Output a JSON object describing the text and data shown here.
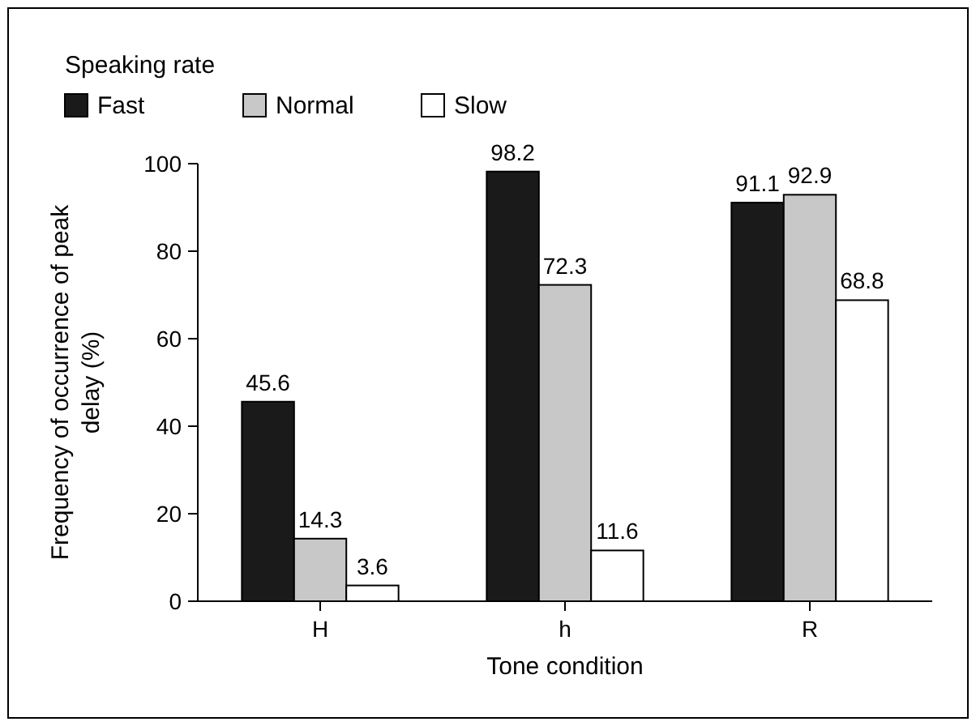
{
  "chart_data": {
    "type": "bar",
    "xlabel": "Tone condition",
    "ylabel": "Frequency of occurrence of peak delay (%)",
    "legend_title": "Speaking rate",
    "categories": [
      "H",
      "h",
      "R"
    ],
    "series": [
      {
        "name": "Fast",
        "color": "#1a1a1a",
        "values": [
          45.6,
          98.2,
          91.1
        ]
      },
      {
        "name": "Normal",
        "color": "#c8c8c8",
        "values": [
          14.3,
          72.3,
          92.9
        ]
      },
      {
        "name": "Slow",
        "color": "#ffffff",
        "values": [
          3.6,
          11.6,
          68.8
        ]
      }
    ],
    "ylim": [
      0,
      100
    ],
    "yticks": [
      0,
      20,
      40,
      60,
      80,
      100
    ],
    "data_labels": true,
    "legend": "top left",
    "grid": false
  }
}
